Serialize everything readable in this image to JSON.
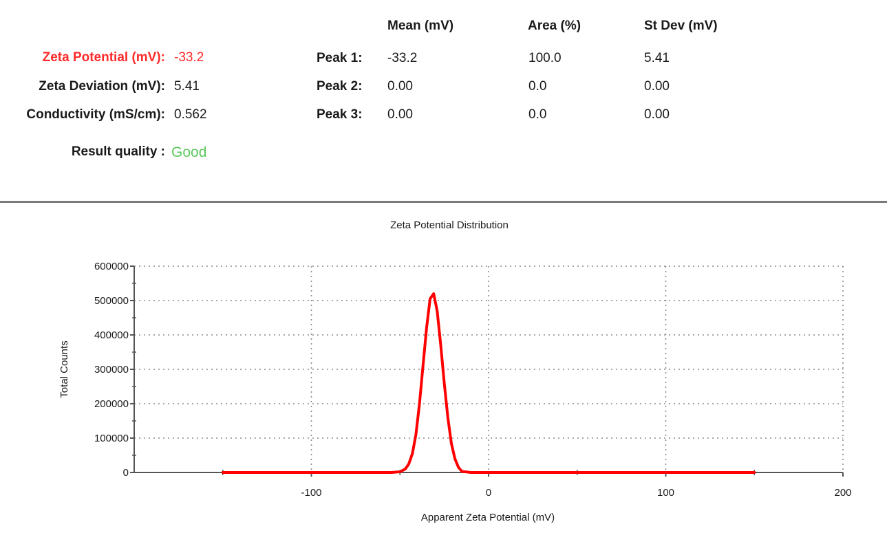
{
  "summary": {
    "zeta_potential": {
      "label": "Zeta Potential (mV):",
      "value": "-33.2",
      "color": "#ff2a2a"
    },
    "zeta_deviation": {
      "label": "Zeta Deviation (mV):",
      "value": "5.41"
    },
    "conductivity": {
      "label": "Conductivity (mS/cm):",
      "value": "0.562"
    },
    "result_quality": {
      "label": "Result quality :",
      "value": "Good",
      "color": "#5cc95c"
    }
  },
  "peaks_table": {
    "headers": {
      "mean": "Mean (mV)",
      "area": "Area (%)",
      "stdev": "St Dev (mV)"
    },
    "rows": [
      {
        "label": "Peak 1:",
        "mean": "-33.2",
        "area": "100.0",
        "stdev": "5.41"
      },
      {
        "label": "Peak 2:",
        "mean": "0.00",
        "area": "0.0",
        "stdev": "0.00"
      },
      {
        "label": "Peak 3:",
        "mean": "0.00",
        "area": "0.0",
        "stdev": "0.00"
      }
    ]
  },
  "chart_data": {
    "type": "line",
    "title": "Zeta Potential Distribution",
    "xlabel": "Apparent Zeta Potential (mV)",
    "ylabel": "Total Counts",
    "xlim": [
      -200,
      200
    ],
    "ylim": [
      0,
      600000
    ],
    "xticks": [
      "-100",
      "0",
      "100",
      "200"
    ],
    "yticks": [
      "0",
      "100000",
      "200000",
      "300000",
      "400000",
      "500000",
      "600000"
    ],
    "grid": "dotted",
    "line_color": "#ff0000",
    "series": [
      {
        "x": [
          -150,
          -55,
          -50,
          -47,
          -45,
          -43,
          -41,
          -39,
          -37,
          -35,
          -33,
          -31,
          -29,
          -27,
          -25,
          -23,
          -21,
          -19,
          -17,
          -15,
          -10,
          150
        ],
        "y": [
          0,
          0,
          2000,
          10000,
          25000,
          55000,
          110000,
          200000,
          310000,
          420000,
          505000,
          520000,
          470000,
          370000,
          260000,
          160000,
          85000,
          40000,
          15000,
          3000,
          0,
          0
        ]
      }
    ]
  }
}
